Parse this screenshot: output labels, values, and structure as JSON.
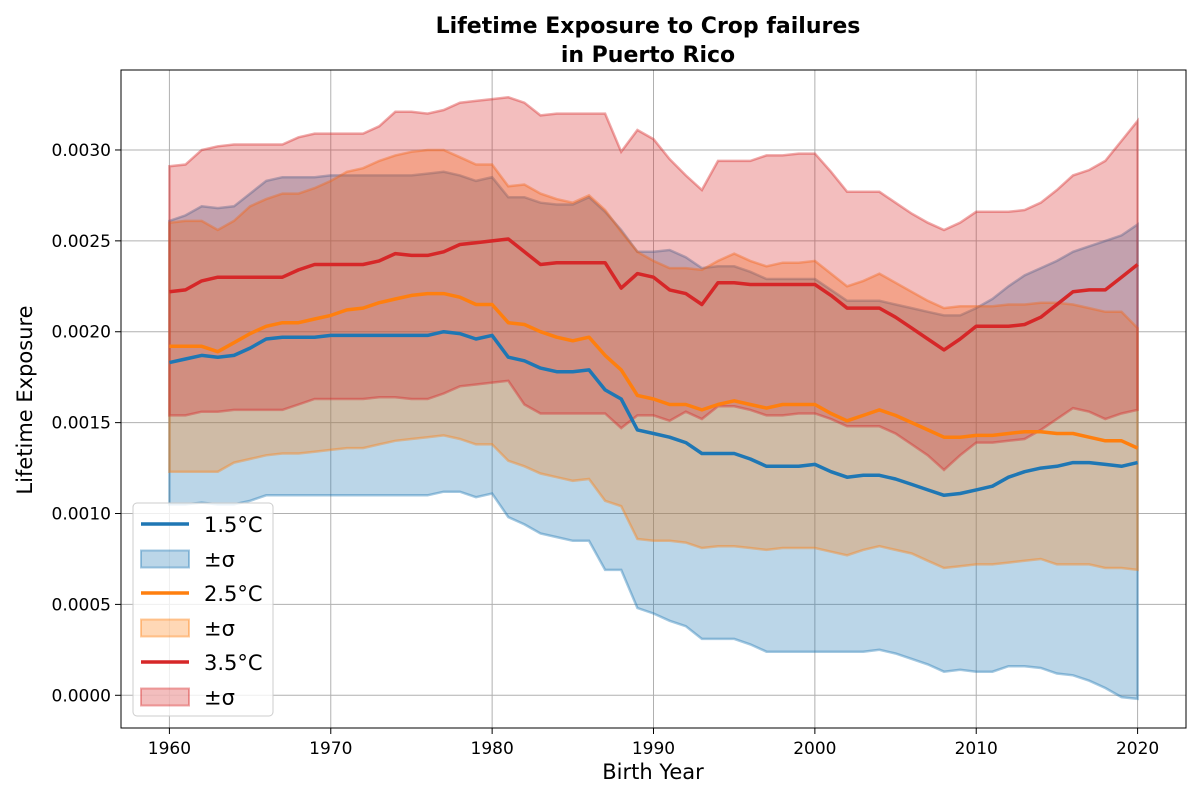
{
  "chart_data": {
    "type": "line",
    "title_line1": "Lifetime Exposure to Crop failures",
    "title_line2": "in Puerto Rico",
    "xlabel": "Birth Year",
    "ylabel": "Lifetime Exposure",
    "xlim": [
      1957,
      2023
    ],
    "ylim": [
      -0.00018,
      0.00344
    ],
    "xticks": [
      1960,
      1970,
      1980,
      1990,
      2000,
      2010,
      2020
    ],
    "xtick_labels": [
      "1960",
      "1970",
      "1980",
      "1990",
      "2000",
      "2010",
      "2020"
    ],
    "yticks": [
      0,
      0.0005,
      0.001,
      0.0015,
      0.002,
      0.0025,
      0.003
    ],
    "ytick_labels": [
      "0.0000",
      "0.0005",
      "0.0010",
      "0.0015",
      "0.0020",
      "0.0025",
      "0.0030"
    ],
    "grid": true,
    "legend_position": "lower-left",
    "x": [
      1960,
      1961,
      1962,
      1963,
      1964,
      1965,
      1966,
      1967,
      1968,
      1969,
      1970,
      1971,
      1972,
      1973,
      1974,
      1975,
      1976,
      1977,
      1978,
      1979,
      1980,
      1981,
      1982,
      1983,
      1984,
      1985,
      1986,
      1987,
      1988,
      1989,
      1990,
      1991,
      1992,
      1993,
      1994,
      1995,
      1996,
      1997,
      1998,
      1999,
      2000,
      2001,
      2002,
      2003,
      2004,
      2005,
      2006,
      2007,
      2008,
      2009,
      2010,
      2011,
      2012,
      2013,
      2014,
      2015,
      2016,
      2017,
      2018,
      2019,
      2020
    ],
    "series": [
      {
        "name": "1.5°C",
        "band_label": "±σ",
        "color": "#1f77b4",
        "band_color": "#1f77b4",
        "mean": [
          0.00183,
          0.00185,
          0.00187,
          0.00186,
          0.00187,
          0.00191,
          0.00196,
          0.00197,
          0.00197,
          0.00197,
          0.00198,
          0.00198,
          0.00198,
          0.00198,
          0.00198,
          0.00198,
          0.00198,
          0.002,
          0.00199,
          0.00196,
          0.00198,
          0.00186,
          0.00184,
          0.0018,
          0.00178,
          0.00178,
          0.00179,
          0.00168,
          0.00163,
          0.00146,
          0.00144,
          0.00142,
          0.00139,
          0.00133,
          0.00133,
          0.00133,
          0.0013,
          0.00126,
          0.00126,
          0.00126,
          0.00127,
          0.00123,
          0.0012,
          0.00121,
          0.00121,
          0.00119,
          0.00116,
          0.00113,
          0.0011,
          0.00111,
          0.00113,
          0.00115,
          0.0012,
          0.00123,
          0.00125,
          0.00126,
          0.00128,
          0.00128,
          0.00127,
          0.00126,
          0.00128
        ],
        "upper": [
          0.00261,
          0.00264,
          0.00269,
          0.00268,
          0.00269,
          0.00276,
          0.00283,
          0.00285,
          0.00285,
          0.00285,
          0.00286,
          0.00286,
          0.00286,
          0.00286,
          0.00286,
          0.00286,
          0.00287,
          0.00288,
          0.00286,
          0.00283,
          0.00285,
          0.00274,
          0.00274,
          0.00271,
          0.0027,
          0.0027,
          0.00274,
          0.00266,
          0.00256,
          0.00244,
          0.00244,
          0.00245,
          0.00241,
          0.00235,
          0.00236,
          0.00236,
          0.00233,
          0.00229,
          0.00229,
          0.00229,
          0.00229,
          0.00223,
          0.00217,
          0.00217,
          0.00217,
          0.00215,
          0.00213,
          0.00211,
          0.00209,
          0.00209,
          0.00213,
          0.00218,
          0.00225,
          0.00231,
          0.00235,
          0.00239,
          0.00244,
          0.00247,
          0.0025,
          0.00253,
          0.00259
        ],
        "lower": [
          0.00105,
          0.00105,
          0.00106,
          0.00105,
          0.00105,
          0.00107,
          0.0011,
          0.0011,
          0.0011,
          0.0011,
          0.0011,
          0.0011,
          0.0011,
          0.0011,
          0.0011,
          0.0011,
          0.0011,
          0.00112,
          0.00112,
          0.00109,
          0.00111,
          0.00098,
          0.00094,
          0.00089,
          0.00087,
          0.00085,
          0.00085,
          0.00069,
          0.00069,
          0.00048,
          0.00045,
          0.00041,
          0.00038,
          0.00031,
          0.00031,
          0.00031,
          0.00028,
          0.00024,
          0.00024,
          0.00024,
          0.00024,
          0.00024,
          0.00024,
          0.00024,
          0.00025,
          0.00023,
          0.0002,
          0.00017,
          0.00013,
          0.00014,
          0.00013,
          0.00013,
          0.00016,
          0.00016,
          0.00015,
          0.00012,
          0.00011,
          8e-05,
          4e-05,
          -1e-05,
          -2e-05
        ]
      },
      {
        "name": "2.5°C",
        "band_label": "±σ",
        "color": "#ff7f0e",
        "band_color": "#ff7f0e",
        "mean": [
          0.00192,
          0.00192,
          0.00192,
          0.00189,
          0.00194,
          0.00199,
          0.00203,
          0.00205,
          0.00205,
          0.00207,
          0.00209,
          0.00212,
          0.00213,
          0.00216,
          0.00218,
          0.0022,
          0.00221,
          0.00221,
          0.00219,
          0.00215,
          0.00215,
          0.00205,
          0.00204,
          0.002,
          0.00197,
          0.00195,
          0.00197,
          0.00187,
          0.00179,
          0.00165,
          0.00163,
          0.0016,
          0.0016,
          0.00157,
          0.0016,
          0.00162,
          0.0016,
          0.00158,
          0.0016,
          0.0016,
          0.0016,
          0.00155,
          0.00151,
          0.00154,
          0.00157,
          0.00154,
          0.0015,
          0.00146,
          0.00142,
          0.00142,
          0.00143,
          0.00143,
          0.00144,
          0.00145,
          0.00145,
          0.00144,
          0.00144,
          0.00142,
          0.0014,
          0.0014,
          0.00136
        ],
        "upper": [
          0.0026,
          0.00261,
          0.00261,
          0.00256,
          0.00261,
          0.00269,
          0.00273,
          0.00276,
          0.00276,
          0.00279,
          0.00283,
          0.00288,
          0.0029,
          0.00294,
          0.00297,
          0.00299,
          0.003,
          0.003,
          0.00296,
          0.00292,
          0.00292,
          0.0028,
          0.00281,
          0.00276,
          0.00273,
          0.00271,
          0.00275,
          0.00267,
          0.00255,
          0.00244,
          0.00239,
          0.00235,
          0.00235,
          0.00234,
          0.00239,
          0.00243,
          0.00239,
          0.00236,
          0.00238,
          0.00238,
          0.00239,
          0.00232,
          0.00225,
          0.00228,
          0.00232,
          0.00227,
          0.00222,
          0.00217,
          0.00213,
          0.00214,
          0.00214,
          0.00214,
          0.00215,
          0.00215,
          0.00216,
          0.00216,
          0.00215,
          0.00213,
          0.00211,
          0.00211,
          0.00202
        ],
        "lower": [
          0.00123,
          0.00123,
          0.00123,
          0.00123,
          0.00128,
          0.0013,
          0.00132,
          0.00133,
          0.00133,
          0.00134,
          0.00135,
          0.00136,
          0.00136,
          0.00138,
          0.0014,
          0.00141,
          0.00142,
          0.00143,
          0.00141,
          0.00138,
          0.00138,
          0.00129,
          0.00126,
          0.00122,
          0.0012,
          0.00118,
          0.00119,
          0.00107,
          0.00104,
          0.00086,
          0.00085,
          0.00085,
          0.00084,
          0.00081,
          0.00082,
          0.00082,
          0.00081,
          0.0008,
          0.00081,
          0.00081,
          0.00081,
          0.00079,
          0.00077,
          0.0008,
          0.00082,
          0.0008,
          0.00078,
          0.00074,
          0.0007,
          0.00071,
          0.00072,
          0.00072,
          0.00073,
          0.00074,
          0.00075,
          0.00072,
          0.00072,
          0.00072,
          0.0007,
          0.0007,
          0.00069
        ]
      },
      {
        "name": "3.5°C",
        "band_label": "±σ",
        "color": "#d62728",
        "band_color": "#d62728",
        "mean": [
          0.00222,
          0.00223,
          0.00228,
          0.0023,
          0.0023,
          0.0023,
          0.0023,
          0.0023,
          0.00234,
          0.00237,
          0.00237,
          0.00237,
          0.00237,
          0.00239,
          0.00243,
          0.00242,
          0.00242,
          0.00244,
          0.00248,
          0.00249,
          0.0025,
          0.00251,
          0.00244,
          0.00237,
          0.00238,
          0.00238,
          0.00238,
          0.00238,
          0.00224,
          0.00232,
          0.0023,
          0.00223,
          0.00221,
          0.00215,
          0.00227,
          0.00227,
          0.00226,
          0.00226,
          0.00226,
          0.00226,
          0.00226,
          0.0022,
          0.00213,
          0.00213,
          0.00213,
          0.00208,
          0.00202,
          0.00196,
          0.0019,
          0.00196,
          0.00203,
          0.00203,
          0.00203,
          0.00204,
          0.00208,
          0.00215,
          0.00222,
          0.00223,
          0.00223,
          0.0023,
          0.00237
        ],
        "upper": [
          0.00291,
          0.00292,
          0.003,
          0.00302,
          0.00303,
          0.00303,
          0.00303,
          0.00303,
          0.00307,
          0.00309,
          0.00309,
          0.00309,
          0.00309,
          0.00313,
          0.00321,
          0.00321,
          0.0032,
          0.00322,
          0.00326,
          0.00327,
          0.00328,
          0.00329,
          0.00326,
          0.00319,
          0.0032,
          0.0032,
          0.0032,
          0.0032,
          0.00299,
          0.00311,
          0.00306,
          0.00295,
          0.00286,
          0.00278,
          0.00294,
          0.00294,
          0.00294,
          0.00297,
          0.00297,
          0.00298,
          0.00298,
          0.00288,
          0.00277,
          0.00277,
          0.00277,
          0.00271,
          0.00265,
          0.0026,
          0.00256,
          0.0026,
          0.00266,
          0.00266,
          0.00266,
          0.00267,
          0.00271,
          0.00278,
          0.00286,
          0.00289,
          0.00294,
          0.00305,
          0.00316
        ],
        "lower": [
          0.00154,
          0.00154,
          0.00156,
          0.00156,
          0.00157,
          0.00157,
          0.00157,
          0.00157,
          0.0016,
          0.00163,
          0.00163,
          0.00163,
          0.00163,
          0.00164,
          0.00164,
          0.00163,
          0.00163,
          0.00166,
          0.0017,
          0.00171,
          0.00172,
          0.00173,
          0.0016,
          0.00155,
          0.00155,
          0.00155,
          0.00155,
          0.00155,
          0.00147,
          0.00154,
          0.00154,
          0.00151,
          0.00156,
          0.00152,
          0.00159,
          0.00159,
          0.00157,
          0.00154,
          0.00154,
          0.00155,
          0.00155,
          0.00152,
          0.00148,
          0.00148,
          0.00148,
          0.00144,
          0.00138,
          0.00132,
          0.00124,
          0.00132,
          0.00139,
          0.00139,
          0.0014,
          0.00141,
          0.00146,
          0.00152,
          0.00158,
          0.00156,
          0.00152,
          0.00155,
          0.00157
        ]
      }
    ]
  }
}
